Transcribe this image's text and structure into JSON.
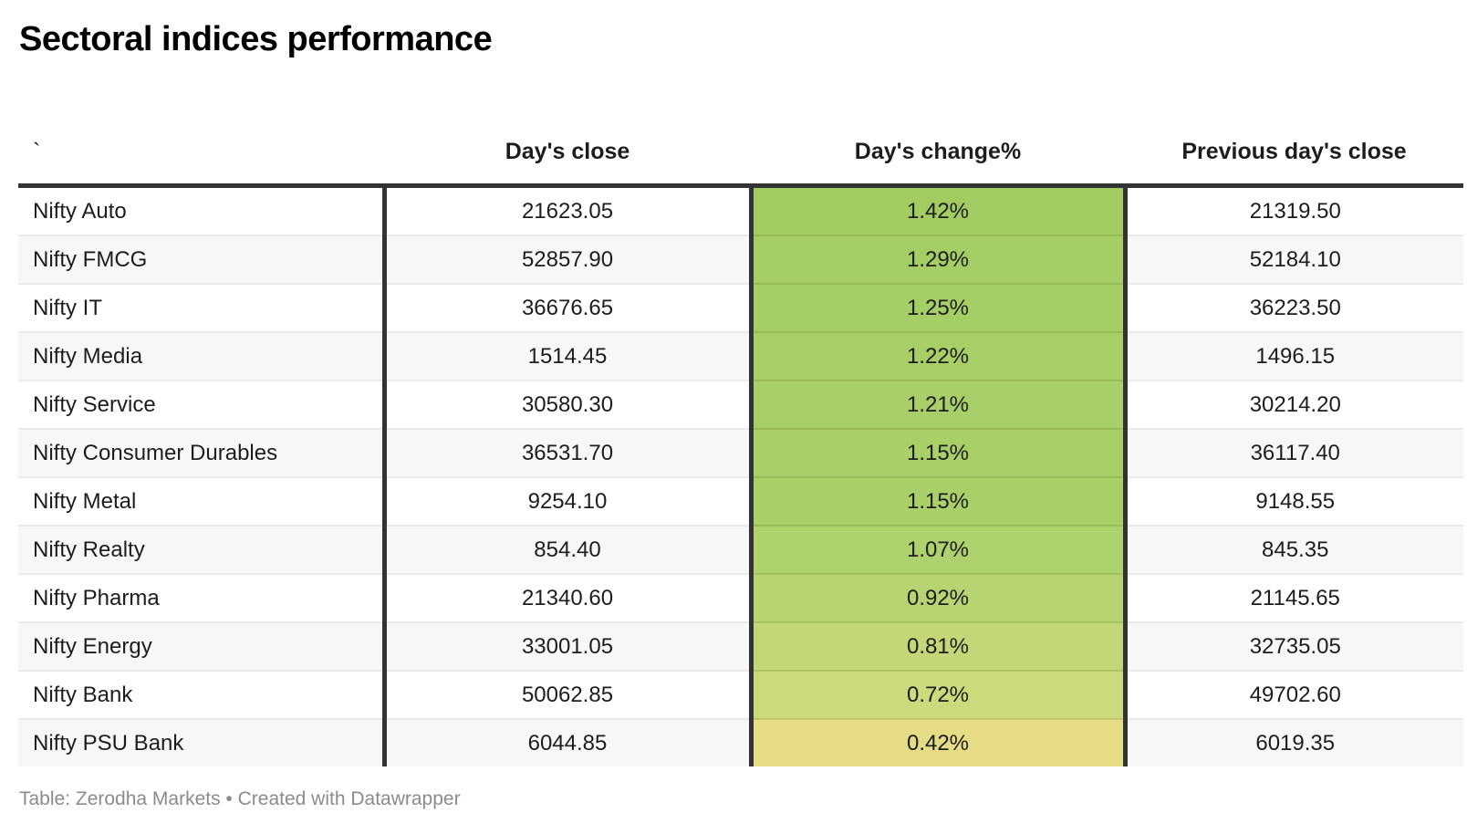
{
  "header": {
    "title": "Sectoral indices performance"
  },
  "chart_data": {
    "type": "table",
    "title": "Sectoral indices performance",
    "columns": [
      "`",
      "Day's close",
      "Day's change%",
      "Previous day's close"
    ],
    "heatmap_column": "Day's change%",
    "heatmap_scale": [
      "#a2cc62",
      "#e5dc85"
    ],
    "rows": [
      {
        "name": "Nifty Auto",
        "days_close": "21623.05",
        "days_change": "1.42%",
        "prev_close": "21319.50",
        "cell_color": "#a2cc62"
      },
      {
        "name": "Nifty FMCG",
        "days_close": "52857.90",
        "days_change": "1.29%",
        "prev_close": "52184.10",
        "cell_color": "#a5cd65"
      },
      {
        "name": "Nifty IT",
        "days_close": "36676.65",
        "days_change": "1.25%",
        "prev_close": "36223.50",
        "cell_color": "#a6ce66"
      },
      {
        "name": "Nifty Media",
        "days_close": "1514.45",
        "days_change": "1.22%",
        "prev_close": "1496.15",
        "cell_color": "#a7ce67"
      },
      {
        "name": "Nifty Service",
        "days_close": "30580.30",
        "days_change": "1.21%",
        "prev_close": "30214.20",
        "cell_color": "#a7ce68"
      },
      {
        "name": "Nifty Consumer Durables",
        "days_close": "36531.70",
        "days_change": "1.15%",
        "prev_close": "36117.40",
        "cell_color": "#a9cf69"
      },
      {
        "name": "Nifty Metal",
        "days_close": "9254.10",
        "days_change": "1.15%",
        "prev_close": "9148.55",
        "cell_color": "#a9cf69"
      },
      {
        "name": "Nifty Realty",
        "days_close": "854.40",
        "days_change": "1.07%",
        "prev_close": "845.35",
        "cell_color": "#add16c"
      },
      {
        "name": "Nifty Pharma",
        "days_close": "21340.60",
        "days_change": "0.92%",
        "prev_close": "21145.65",
        "cell_color": "#b8d472"
      },
      {
        "name": "Nifty Energy",
        "days_close": "33001.05",
        "days_change": "0.81%",
        "prev_close": "32735.05",
        "cell_color": "#c3d778"
      },
      {
        "name": "Nifty Bank",
        "days_close": "50062.85",
        "days_change": "0.72%",
        "prev_close": "49702.60",
        "cell_color": "#cdd97d"
      },
      {
        "name": "Nifty PSU Bank",
        "days_close": "6044.85",
        "days_change": "0.42%",
        "prev_close": "6019.35",
        "cell_color": "#e5dc85"
      }
    ]
  },
  "footer": {
    "text": "Table: Zerodha Markets • Created with Datawrapper"
  },
  "colors": {
    "rule_dark": "#333333",
    "row_stripe": "#f7f7f7",
    "separator": "#ebebeb",
    "footer_text": "#8b8b8b"
  }
}
